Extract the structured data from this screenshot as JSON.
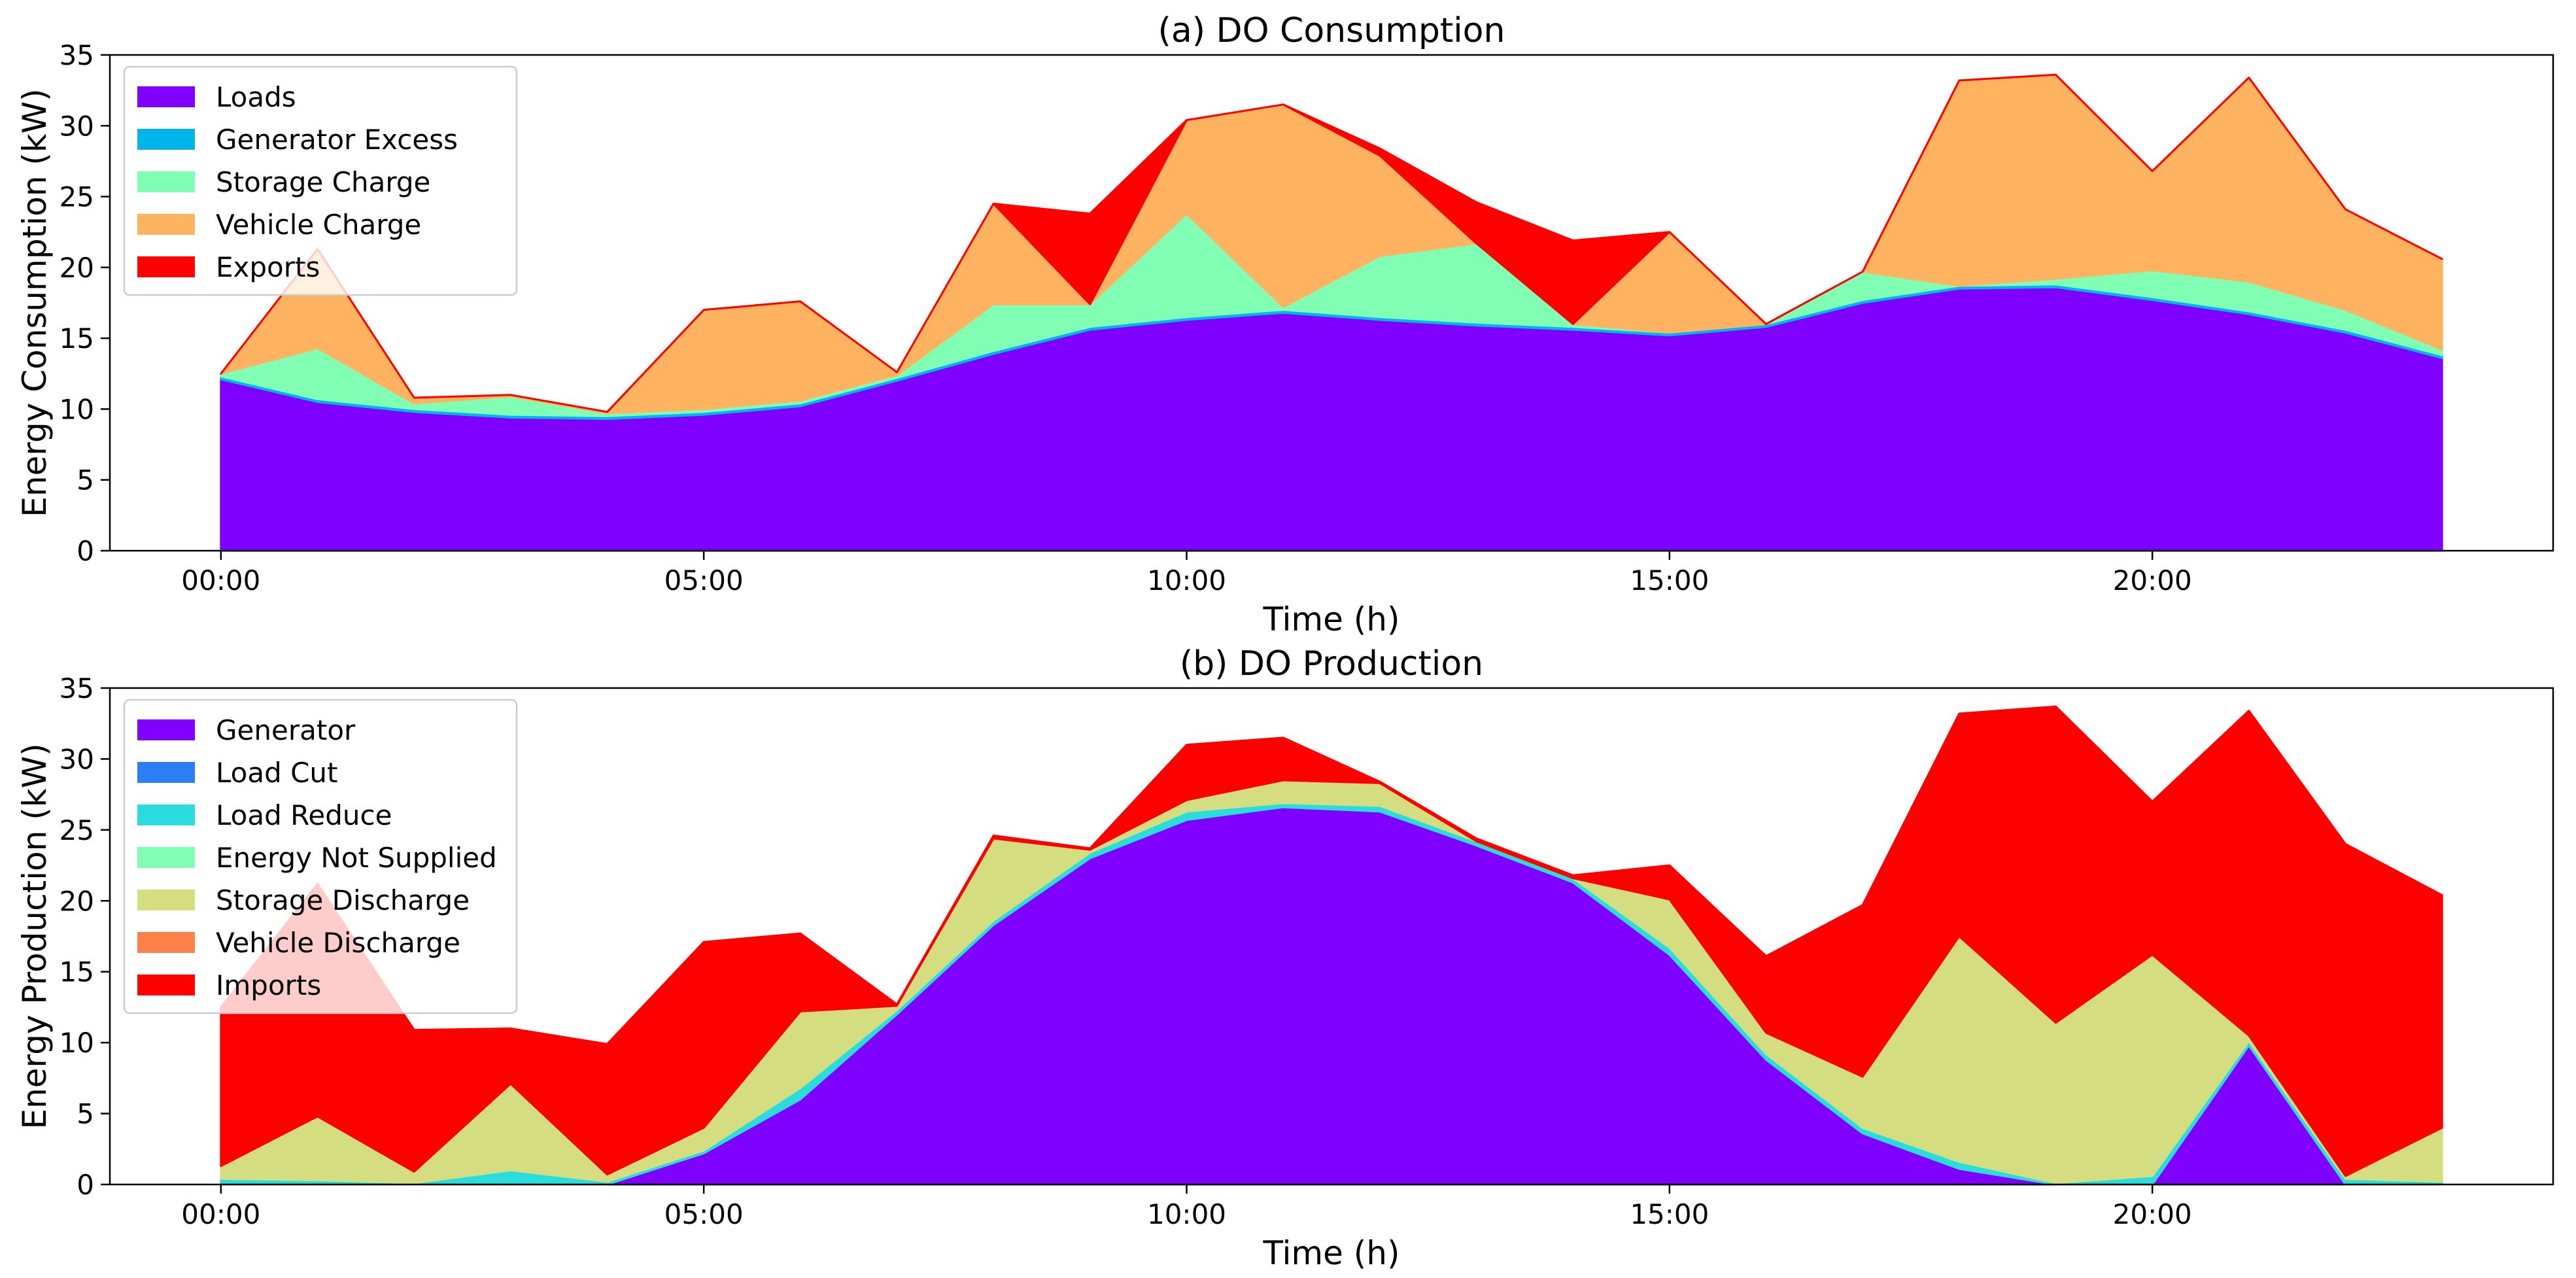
{
  "chart_data": [
    {
      "id": "consumption",
      "type": "area",
      "stacked": true,
      "title": "(a) DO Consumption",
      "xlabel": "Time (h)",
      "ylabel": "Energy Consumption (kW)",
      "xlim": [
        -1.15,
        24.15
      ],
      "ylim": [
        0,
        35
      ],
      "legend_position": "top-left",
      "x": [
        0,
        1,
        2,
        3,
        4,
        5,
        6,
        7,
        8,
        9,
        10,
        11,
        12,
        13,
        14,
        15,
        16,
        17,
        18,
        19,
        20,
        21,
        22,
        23
      ],
      "x_ticks": [
        0,
        5,
        10,
        15,
        20
      ],
      "x_tick_labels": [
        "00:00",
        "05:00",
        "10:00",
        "15:00",
        "20:00"
      ],
      "y_ticks": [
        0,
        5,
        10,
        15,
        20,
        25,
        30,
        35
      ],
      "y_tick_labels": [
        "0",
        "5",
        "10",
        "15",
        "20",
        "25",
        "30",
        "35"
      ],
      "series": [
        {
          "name": "Loads",
          "color": "#8000ff",
          "values": [
            12.1,
            10.5,
            9.8,
            9.4,
            9.3,
            9.6,
            10.2,
            12.0,
            13.9,
            15.6,
            16.3,
            16.8,
            16.3,
            15.9,
            15.6,
            15.2,
            15.8,
            17.5,
            18.5,
            18.6,
            17.7,
            16.7,
            15.4,
            13.6
          ]
        },
        {
          "name": "Generator Excess",
          "color": "#00b5eb",
          "values": [
            0.2,
            0.2,
            0.2,
            0.2,
            0.2,
            0.2,
            0.2,
            0.2,
            0.2,
            0.2,
            0.2,
            0.2,
            0.2,
            0.2,
            0.2,
            0.2,
            0.2,
            0.2,
            0.2,
            0.2,
            0.2,
            0.2,
            0.2,
            0.2
          ]
        },
        {
          "name": "Storage Charge",
          "color": "#80ffb4",
          "values": [
            0.2,
            3.6,
            0.4,
            1.3,
            0.2,
            0.2,
            0.2,
            0.2,
            3.3,
            1.6,
            7.3,
            0.2,
            4.3,
            5.6,
            0.2,
            0.0,
            0.0,
            2.0,
            0.0,
            0.4,
            1.9,
            2.1,
            1.4,
            0.4
          ]
        },
        {
          "name": "Vehicle Charge",
          "color": "#ffb360",
          "values": [
            0.0,
            7.0,
            0.4,
            0.1,
            0.1,
            7.0,
            7.0,
            0.2,
            7.1,
            0.0,
            6.6,
            14.3,
            7.1,
            0.0,
            0.0,
            7.1,
            0.0,
            0.0,
            14.5,
            14.4,
            7.0,
            14.4,
            7.1,
            6.4
          ]
        },
        {
          "name": "Exports",
          "color": "#ff0000",
          "values": [
            0.0,
            0.0,
            0.0,
            0.0,
            0.0,
            0.0,
            0.0,
            0.0,
            0.0,
            6.4,
            0.0,
            0.0,
            0.5,
            2.9,
            5.9,
            0.0,
            0.0,
            0.0,
            0.0,
            0.0,
            0.0,
            0.0,
            0.0,
            0.0
          ]
        }
      ]
    },
    {
      "id": "production",
      "type": "area",
      "stacked": true,
      "title": "(b) DO Production",
      "xlabel": "Time (h)",
      "ylabel": "Energy Production (kW)",
      "xlim": [
        -1.15,
        24.15
      ],
      "ylim": [
        0,
        35
      ],
      "legend_position": "top-left",
      "x": [
        0,
        1,
        2,
        3,
        4,
        5,
        6,
        7,
        8,
        9,
        10,
        11,
        12,
        13,
        14,
        15,
        16,
        17,
        18,
        19,
        20,
        21,
        22,
        23
      ],
      "x_ticks": [
        0,
        5,
        10,
        15,
        20
      ],
      "x_tick_labels": [
        "00:00",
        "05:00",
        "10:00",
        "15:00",
        "20:00"
      ],
      "y_ticks": [
        0,
        5,
        10,
        15,
        20,
        25,
        30,
        35
      ],
      "y_tick_labels": [
        "0",
        "5",
        "10",
        "15",
        "20",
        "25",
        "30",
        "35"
      ],
      "series": [
        {
          "name": "Generator",
          "color": "#8000ff",
          "values": [
            0.0,
            0.0,
            0.0,
            0.0,
            0.0,
            2.2,
            6.0,
            12.0,
            18.3,
            23.0,
            25.7,
            26.6,
            26.3,
            23.9,
            21.3,
            16.2,
            8.8,
            3.6,
            1.1,
            0.0,
            0.0,
            9.8,
            0.0,
            0.0
          ]
        },
        {
          "name": "Load Cut",
          "color": "#2c7ef7",
          "values": [
            0.0,
            0.0,
            0.0,
            0.0,
            0.0,
            0.0,
            0.0,
            0.0,
            0.0,
            0.0,
            0.0,
            0.0,
            0.0,
            0.0,
            0.0,
            0.0,
            0.0,
            0.0,
            0.0,
            0.0,
            0.0,
            0.0,
            0.0,
            0.0
          ]
        },
        {
          "name": "Load Reduce",
          "color": "#2adddd",
          "values": [
            0.4,
            0.3,
            0.1,
            1.0,
            0.2,
            0.2,
            0.8,
            0.3,
            0.3,
            0.4,
            0.6,
            0.3,
            0.4,
            0.3,
            0.3,
            0.5,
            0.4,
            0.4,
            0.5,
            0.1,
            0.6,
            0.3,
            0.4,
            0.2
          ]
        },
        {
          "name": "Energy Not Supplied",
          "color": "#80ffb4",
          "values": [
            0.0,
            0.0,
            0.0,
            0.0,
            0.0,
            0.0,
            0.0,
            0.0,
            0.0,
            0.0,
            0.0,
            0.0,
            0.0,
            0.0,
            0.0,
            0.0,
            0.0,
            0.0,
            0.0,
            0.0,
            0.0,
            0.0,
            0.0,
            0.0
          ]
        },
        {
          "name": "Storage Discharge",
          "color": "#d4dd80",
          "values": [
            0.9,
            4.5,
            0.8,
            6.1,
            0.5,
            1.6,
            5.4,
            0.3,
            5.8,
            0.2,
            0.8,
            1.6,
            1.6,
            0.0,
            0.0,
            3.4,
            1.5,
            3.6,
            15.9,
            11.3,
            15.6,
            0.4,
            0.2,
            3.8
          ]
        },
        {
          "name": "Vehicle Discharge",
          "color": "#ff8048",
          "values": [
            0.0,
            0.0,
            0.0,
            0.0,
            0.0,
            0.0,
            0.0,
            0.0,
            0.0,
            0.0,
            0.0,
            0.0,
            0.0,
            0.0,
            0.0,
            0.0,
            0.0,
            0.0,
            0.0,
            0.0,
            0.0,
            0.0,
            0.0,
            0.0
          ]
        },
        {
          "name": "Imports",
          "color": "#ff0000",
          "values": [
            11.2,
            16.4,
            10.0,
            3.9,
            9.2,
            13.1,
            5.5,
            0.1,
            0.2,
            0.1,
            3.9,
            3.0,
            0.1,
            0.2,
            0.2,
            2.4,
            5.4,
            12.1,
            15.7,
            22.3,
            10.8,
            22.9,
            23.4,
            16.4
          ]
        }
      ]
    }
  ]
}
